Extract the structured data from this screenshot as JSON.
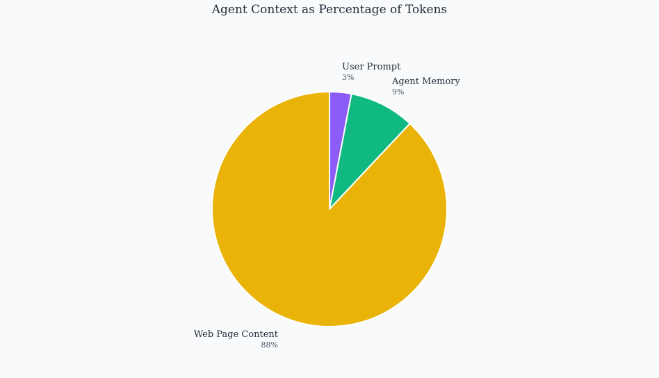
{
  "chart_data": {
    "type": "pie",
    "title": "Agent Context as Percentage of Tokens",
    "slices": [
      {
        "label": "User Prompt",
        "value": 3,
        "display": "3%",
        "color": "#8b5cf6"
      },
      {
        "label": "Agent Memory",
        "value": 9,
        "display": "9%",
        "color": "#10b981"
      },
      {
        "label": "Web Page Content",
        "value": 88,
        "display": "88%",
        "color": "#eab308"
      }
    ],
    "start_angle": "12 o'clock",
    "direction": "clockwise",
    "legend": "none"
  }
}
